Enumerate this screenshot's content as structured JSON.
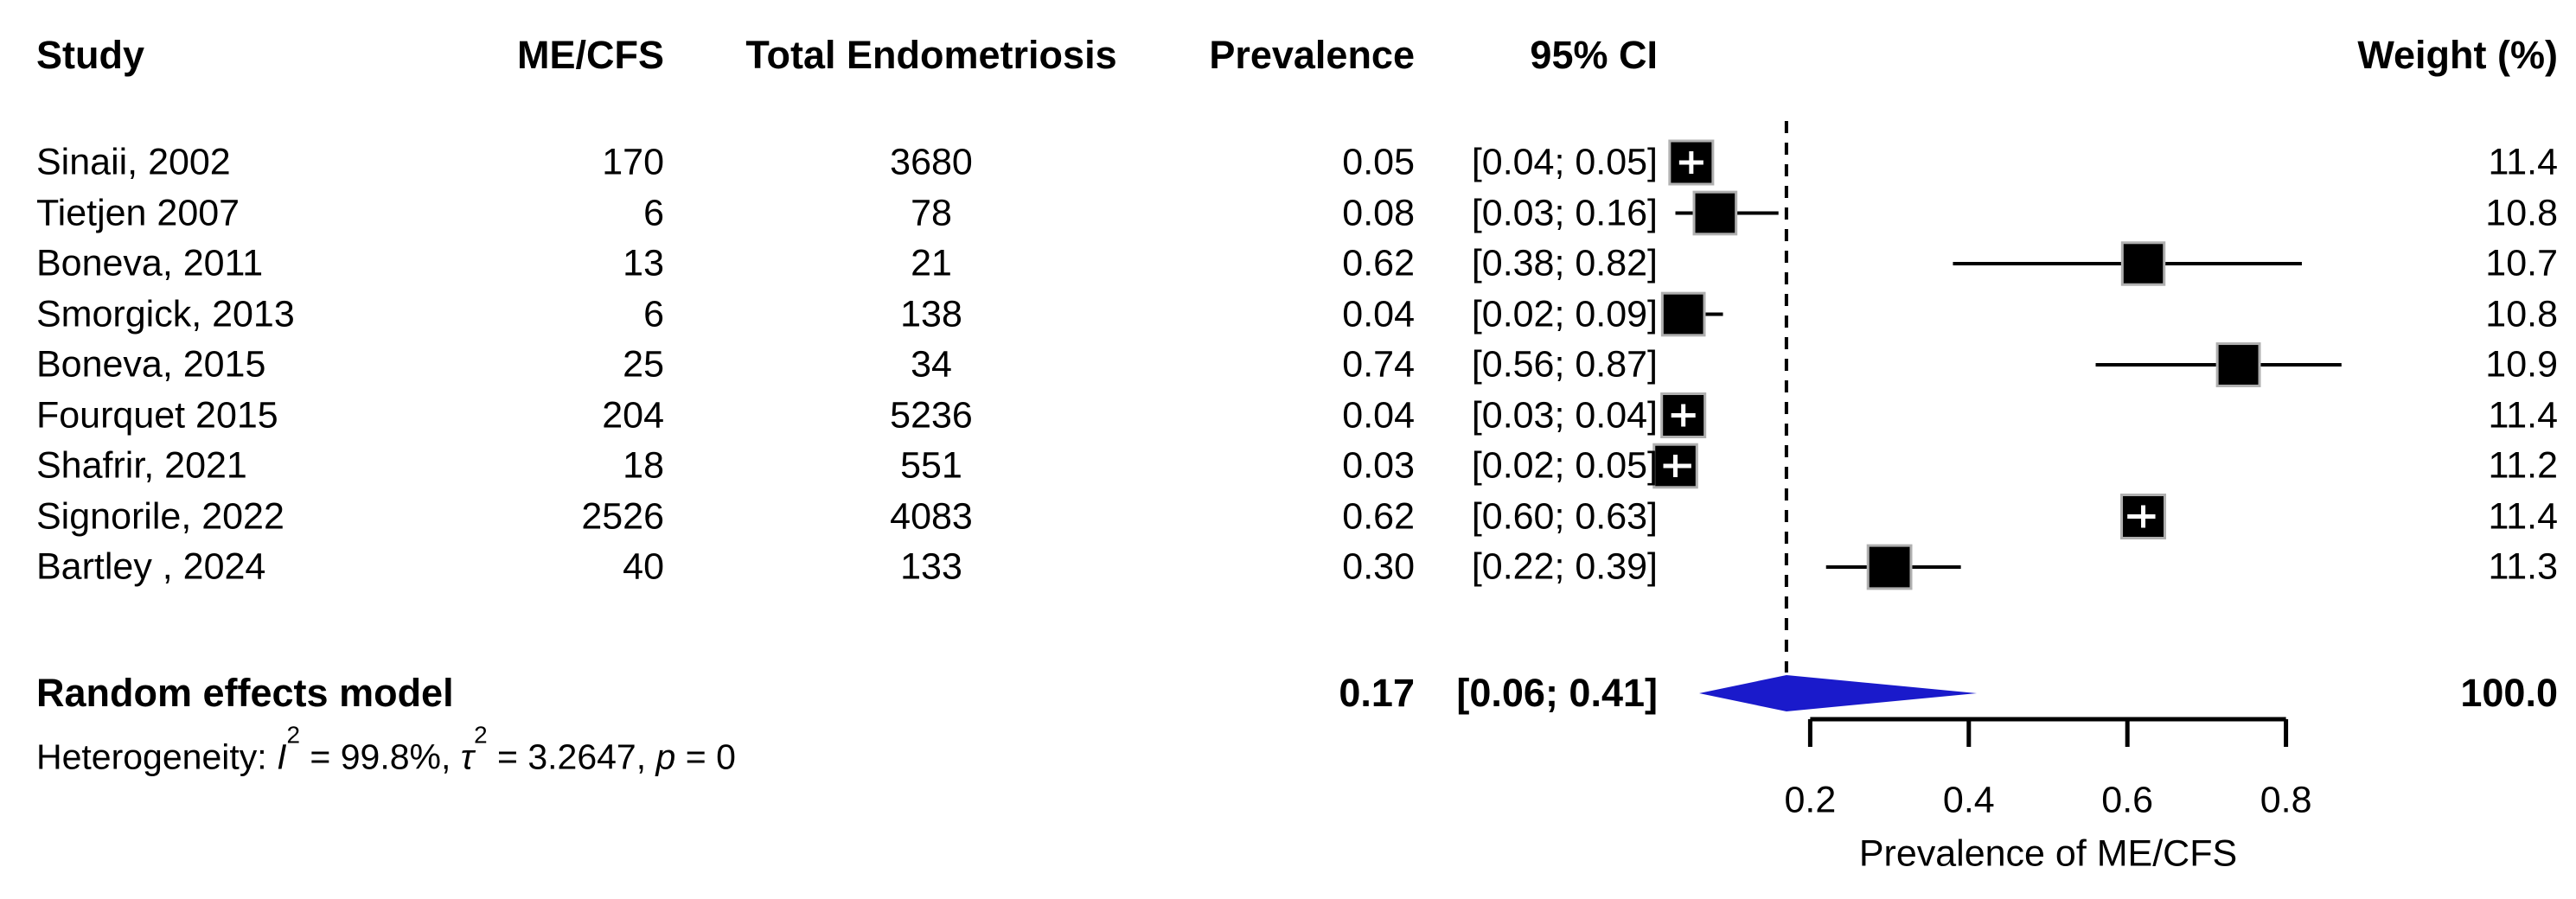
{
  "chart_data": {
    "type": "forest",
    "columns": [
      "Study",
      "ME/CFS",
      "Total Endometriosis",
      "Prevalence",
      "95% CI",
      "Weight (%)"
    ],
    "studies": [
      {
        "study": "Sinaii, 2002",
        "me_cfs": "170",
        "total": "3680",
        "prevalence": "0.05",
        "ci": "[0.04; 0.05]",
        "weight": "11.4",
        "est": 0.05,
        "lo": 0.04,
        "hi": 0.05
      },
      {
        "study": "Tietjen 2007",
        "me_cfs": "6",
        "total": "78",
        "prevalence": "0.08",
        "ci": "[0.03; 0.16]",
        "weight": "10.8",
        "est": 0.08,
        "lo": 0.03,
        "hi": 0.16
      },
      {
        "study": "Boneva, 2011",
        "me_cfs": "13",
        "total": "21",
        "prevalence": "0.62",
        "ci": "[0.38; 0.82]",
        "weight": "10.7",
        "est": 0.62,
        "lo": 0.38,
        "hi": 0.82
      },
      {
        "study": "Smorgick, 2013",
        "me_cfs": "6",
        "total": "138",
        "prevalence": "0.04",
        "ci": "[0.02; 0.09]",
        "weight": "10.8",
        "est": 0.04,
        "lo": 0.02,
        "hi": 0.09
      },
      {
        "study": "Boneva, 2015",
        "me_cfs": "25",
        "total": "34",
        "prevalence": "0.74",
        "ci": "[0.56; 0.87]",
        "weight": "10.9",
        "est": 0.74,
        "lo": 0.56,
        "hi": 0.87
      },
      {
        "study": "Fourquet 2015",
        "me_cfs": "204",
        "total": "5236",
        "prevalence": "0.04",
        "ci": "[0.03; 0.04]",
        "weight": "11.4",
        "est": 0.04,
        "lo": 0.03,
        "hi": 0.04
      },
      {
        "study": "Shafrir, 2021",
        "me_cfs": "18",
        "total": "551",
        "prevalence": "0.03",
        "ci": "[0.02; 0.05]",
        "weight": "11.2",
        "est": 0.03,
        "lo": 0.02,
        "hi": 0.05
      },
      {
        "study": "Signorile, 2022",
        "me_cfs": "2526",
        "total": "4083",
        "prevalence": "0.62",
        "ci": "[0.60; 0.63]",
        "weight": "11.4",
        "est": 0.62,
        "lo": 0.6,
        "hi": 0.63
      },
      {
        "study": "Bartley , 2024",
        "me_cfs": "40",
        "total": "133",
        "prevalence": "0.30",
        "ci": "[0.22; 0.39]",
        "weight": "11.3",
        "est": 0.3,
        "lo": 0.22,
        "hi": 0.39
      }
    ],
    "pooled": {
      "label": "Random effects model",
      "prevalence": "0.17",
      "ci": "[0.06; 0.41]",
      "weight": "100.0",
      "est": 0.17,
      "lo": 0.06,
      "hi": 0.41
    },
    "heterogeneity": {
      "prefix": "Heterogeneity: ",
      "i_symbol": "I",
      "i_sup": "2",
      "seg1": " = 99.8%, ",
      "tau_symbol": "τ",
      "tau_sup": "2",
      "seg2": " = 3.2647, ",
      "p_symbol": "p",
      "seg3": " = 0"
    },
    "xaxis": {
      "ticks": [
        "0.2",
        "0.4",
        "0.6",
        "0.8"
      ],
      "tick_values": [
        0.2,
        0.4,
        0.6,
        0.8
      ],
      "label": "Prevalence of ME/CFS",
      "range_shown": [
        0.02,
        0.87
      ]
    },
    "reference_line": 0.17,
    "legend": null,
    "grid": false,
    "colors": {
      "diamond_fill": "#1a1acb",
      "marker_fill": "#000000",
      "marker_border": "#b0b0b0",
      "text": "#000000",
      "background": "#ffffff"
    }
  }
}
